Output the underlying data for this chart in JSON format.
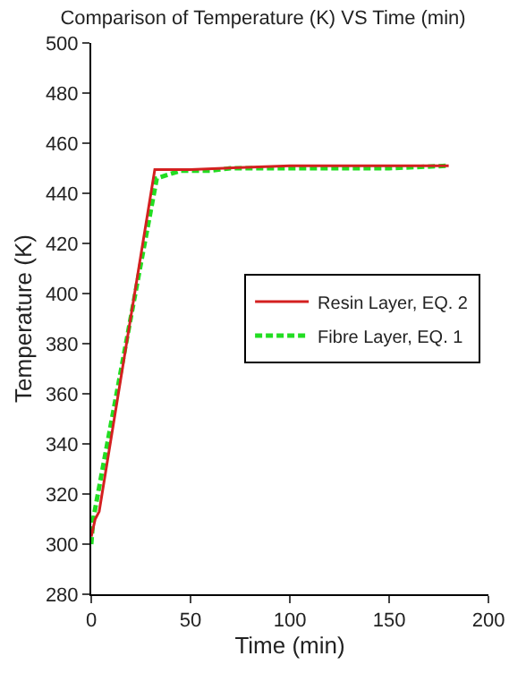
{
  "chart_data": {
    "type": "line",
    "title": "Comparison of Temperature (K) VS Time (min)",
    "xlabel": "Time (min)",
    "ylabel": "Temperature (K)",
    "xlim": [
      0,
      200
    ],
    "xticks": [
      0,
      50,
      100,
      150,
      200
    ],
    "ylim": [
      280,
      500
    ],
    "yticks": [
      280,
      300,
      320,
      340,
      360,
      380,
      400,
      420,
      440,
      460,
      480,
      500
    ],
    "grid": false,
    "legend": "right",
    "marker": "none",
    "series": [
      {
        "name": "Resin Layer, EQ. 2",
        "color": "#d42020",
        "line_style": "solid",
        "x": [
          0,
          2,
          4,
          32,
          50,
          100,
          180
        ],
        "values": [
          303,
          310,
          313,
          449.5,
          449.5,
          451,
          451
        ]
      },
      {
        "name": "Fibre Layer, EQ. 1",
        "color": "#22dd22",
        "line_style": "dashed",
        "x": [
          0,
          1,
          33,
          45,
          60,
          70,
          150,
          180
        ],
        "values": [
          300,
          310,
          446,
          449,
          449,
          450,
          450,
          451
        ]
      }
    ]
  }
}
